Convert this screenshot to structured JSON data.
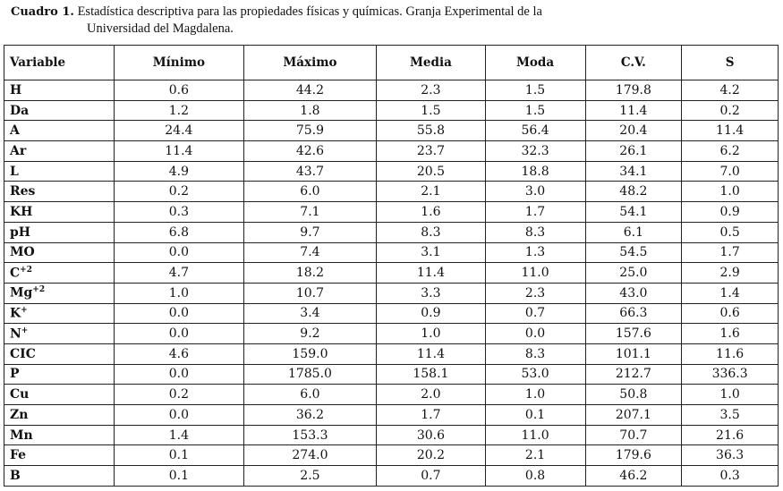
{
  "caption": {
    "label": "Cuadro 1.",
    "line1": "Estadística descriptiva para las propiedades físicas y químicas. Granja Experimental de la",
    "line2": "Universidad del Magdalena."
  },
  "table": {
    "headers": [
      "Variable",
      "Mínimo",
      "Máximo",
      "Media",
      "Moda",
      "C.V.",
      "S"
    ],
    "rows": [
      {
        "var": "H",
        "sup": "",
        "values": [
          "0.6",
          "44.2",
          "2.3",
          "1.5",
          "179.8",
          "4.2"
        ]
      },
      {
        "var": "Da",
        "sup": "",
        "values": [
          "1.2",
          "1.8",
          "1.5",
          "1.5",
          "11.4",
          "0.2"
        ]
      },
      {
        "var": "A",
        "sup": "",
        "values": [
          "24.4",
          "75.9",
          "55.8",
          "56.4",
          "20.4",
          "11.4"
        ]
      },
      {
        "var": "Ar",
        "sup": "",
        "values": [
          "11.4",
          "42.6",
          "23.7",
          "32.3",
          "26.1",
          "6.2"
        ]
      },
      {
        "var": "L",
        "sup": "",
        "values": [
          "4.9",
          "43.7",
          "20.5",
          "18.8",
          "34.1",
          "7.0"
        ]
      },
      {
        "var": "Res",
        "sup": "",
        "values": [
          "0.2",
          "6.0",
          "2.1",
          "3.0",
          "48.2",
          "1.0"
        ]
      },
      {
        "var": "KH",
        "sup": "",
        "values": [
          "0.3",
          "7.1",
          "1.6",
          "1.7",
          "54.1",
          "0.9"
        ]
      },
      {
        "var": "pH",
        "sup": "",
        "values": [
          "6.8",
          "9.7",
          "8.3",
          "8.3",
          "6.1",
          "0.5"
        ]
      },
      {
        "var": "MO",
        "sup": "",
        "values": [
          "0.0",
          "7.4",
          "3.1",
          "1.3",
          "54.5",
          "1.7"
        ]
      },
      {
        "var": "C",
        "sup": "+2",
        "values": [
          "4.7",
          "18.2",
          "11.4",
          "11.0",
          "25.0",
          "2.9"
        ]
      },
      {
        "var": "Mg",
        "sup": "+2",
        "values": [
          "1.0",
          "10.7",
          "3.3",
          "2.3",
          "43.0",
          "1.4"
        ]
      },
      {
        "var": "K",
        "sup": "+",
        "values": [
          "0.0",
          "3.4",
          "0.9",
          "0.7",
          "66.3",
          "0.6"
        ]
      },
      {
        "var": "N",
        "sup": "+",
        "values": [
          "0.0",
          "9.2",
          "1.0",
          "0.0",
          "157.6",
          "1.6"
        ]
      },
      {
        "var": "CIC",
        "sup": "",
        "values": [
          "4.6",
          "159.0",
          "11.4",
          "8.3",
          "101.1",
          "11.6"
        ]
      },
      {
        "var": "P",
        "sup": "",
        "values": [
          "0.0",
          "1785.0",
          "158.1",
          "53.0",
          "212.7",
          "336.3"
        ]
      },
      {
        "var": "Cu",
        "sup": "",
        "values": [
          "0.2",
          "6.0",
          "2.0",
          "1.0",
          "50.8",
          "1.0"
        ]
      },
      {
        "var": "Zn",
        "sup": "",
        "values": [
          "0.0",
          "36.2",
          "1.7",
          "0.1",
          "207.1",
          "3.5"
        ]
      },
      {
        "var": "Mn",
        "sup": "",
        "values": [
          "1.4",
          "153.3",
          "30.6",
          "11.0",
          "70.7",
          "21.6"
        ]
      },
      {
        "var": "Fe",
        "sup": "",
        "values": [
          "0.1",
          "274.0",
          "20.2",
          "2.1",
          "179.6",
          "36.3"
        ]
      },
      {
        "var": "B",
        "sup": "",
        "values": [
          "0.1",
          "2.5",
          "0.7",
          "0.8",
          "46.2",
          "0.3"
        ]
      }
    ]
  }
}
